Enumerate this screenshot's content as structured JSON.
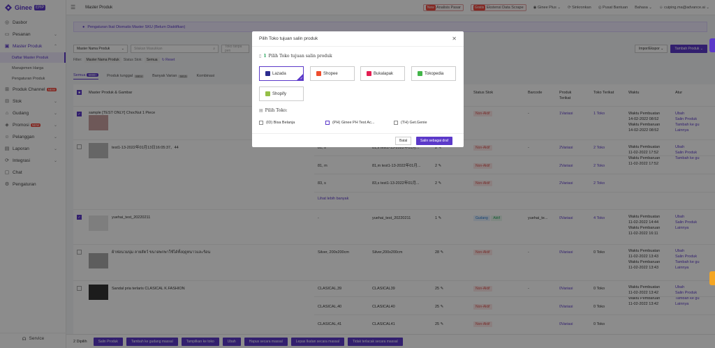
{
  "app": {
    "name": "Ginee",
    "badge": "ERP"
  },
  "sidebar": {
    "items": [
      {
        "label": "Dasbor",
        "icon": "dashboard-icon"
      },
      {
        "label": "Pesanan",
        "icon": "cart-icon"
      },
      {
        "label": "Master Produk",
        "icon": "box-icon"
      },
      {
        "label": "Produk Channel",
        "icon": "channel-icon",
        "tag": "NEW"
      },
      {
        "label": "Stok",
        "icon": "stock-icon"
      },
      {
        "label": "Gudang",
        "icon": "warehouse-icon"
      },
      {
        "label": "Promosi",
        "icon": "promo-icon",
        "tag": "NEW"
      },
      {
        "label": "Pelanggan",
        "icon": "users-icon"
      },
      {
        "label": "Laporan",
        "icon": "report-icon"
      },
      {
        "label": "Integrasi",
        "icon": "integration-icon"
      },
      {
        "label": "Chat",
        "icon": "chat-icon"
      },
      {
        "label": "Pengaturan",
        "icon": "settings-icon"
      }
    ],
    "subitems": [
      "Daftar Master Produk",
      "Manajemen Harga",
      "Pengaturan Produk"
    ],
    "service": "Service"
  },
  "topbar": {
    "title": "Master Produk",
    "new_badge": "New",
    "analisis": "Analisis Pasar",
    "gratis_badge": "Gratis",
    "scrape": "Ekstensi Data Scrape",
    "ginee_plus": "Ginee Plus",
    "sinkronkan": "Sinkronkan",
    "pusat_bantuan": "Pusat Bantuan",
    "bahasa": "Bahasa",
    "user": "cuiping.ma@advance.ai"
  },
  "notice": "Pengaturan Ikat Otomatis Master SKU (Belum Diaktifkan)",
  "filter": {
    "field": "Master Nama Produk",
    "search_placeholder": "Silakan Masukkan",
    "store_placeholder": "Toko tanpa pen",
    "import_export": "Impor/Ekspor",
    "add_product": "Tambah Produk",
    "chips_label": "Filter:",
    "chip1": "Master Nama Produk",
    "status_label": "Status Stok:",
    "chip2": "Semua",
    "reset": "Reset"
  },
  "tabs": [
    {
      "label": "Semua",
      "count": "9999+"
    },
    {
      "label": "Produk tunggal",
      "count": "8804"
    },
    {
      "label": "Banyak Varian",
      "count": "5815"
    },
    {
      "label": "Kombinasi",
      "count": ""
    }
  ],
  "table": {
    "headers": [
      "Master Produk & Gambar",
      "Status Stok",
      "Barcode",
      "Produk Terikat",
      "Toko Terikat",
      "Waktu",
      "Atur"
    ],
    "rows": [
      {
        "name": "sample [TEST ONLY] ChocNut 1 Piece",
        "variant": "",
        "sku": "",
        "qty": "",
        "status": "Non-Aktif",
        "barcode": "-",
        "variasi": "1Variasi",
        "toko": "1 Toko",
        "w1": "Waktu Pembuatan",
        "d1": "14-02-2022 08:52",
        "w2": "Waktu Pembaruan",
        "d2": "14-02-2022 08:52",
        "actions": [
          "Ubah",
          "Salin Produk",
          "Tambah ke gu",
          "Lainnya"
        ]
      },
      {
        "name": "test1-13-2022年01月13日16:05:37、44",
        "variant": "81, s",
        "sku": "81,s test1-13-2022年01月...",
        "qty": "2",
        "status": "Non-Aktif",
        "barcode": "-",
        "variasi": "2Variasi",
        "toko": "2 Toko",
        "w1": "Waktu Pembuatan",
        "d1": "11-02-2022 17:52",
        "w2": "Waktu Pembaruan",
        "d2": "11-02-2022 17:52",
        "actions": [
          "Ubah",
          "Salin Produk",
          "Tambah ke gu"
        ]
      },
      {
        "name": "",
        "variant": "81, m",
        "sku": "81,m test1-13-2022年01月...",
        "qty": "2",
        "status": "Non-Aktif",
        "barcode": "",
        "variasi": "2Variasi",
        "toko": "2 Toko",
        "w1": "",
        "d1": "",
        "w2": "",
        "d2": "",
        "actions": []
      },
      {
        "name": "",
        "variant": "83, s",
        "sku": "83,s test1-13-2022年01月...",
        "qty": "2",
        "status": "Non-Aktif",
        "barcode": "",
        "variasi": "2Variasi",
        "toko": "2 Toko",
        "w1": "",
        "d1": "",
        "w2": "",
        "d2": "",
        "actions": []
      },
      {
        "name": "yuehai_test_20220211",
        "variant": "-",
        "sku": "yuehai_test_20220211",
        "qty": "1",
        "status": "Gudang",
        "status2": "Aktif",
        "barcode": "yuehai_te...",
        "variasi": "0Variasi",
        "toko": "4 Toko",
        "w1": "Waktu Pembuatan",
        "d1": "11-02-2022 14:44",
        "w2": "Waktu Pembaruan",
        "d2": "11-02-2022 16:11",
        "actions": [
          "Ubah",
          "Salin Produk",
          "Lainnya"
        ]
      },
      {
        "name": "ผ้าห่อนวมนุ่ม ลายสัตว์ ขนาดพกพาใช้ได้ทั้งฤดูหนาวและร้อน",
        "variant": "Silver, 200x200cm",
        "sku": "Silver,200x200cm",
        "qty": "28",
        "status": "Non-Aktif",
        "barcode": "-",
        "variasi": "0Variasi",
        "toko": "0 Toko",
        "w1": "Waktu Pembuatan",
        "d1": "11-02-2022 13:43",
        "w2": "Waktu Pembaruan",
        "d2": "11-02-2022 13:43",
        "actions": [
          "Ubah",
          "Salin Produk",
          "Tambah ke gu",
          "Lainnya"
        ]
      },
      {
        "name": "Sandal pria terlaris CLASICAL K.FASHION",
        "variant": "CLASICAL,39",
        "sku": "CLASICAL39",
        "qty": "25",
        "status": "Non-Aktif",
        "barcode": "-",
        "variasi": "0Variasi",
        "toko": "0 Toko",
        "w1": "Waktu Pembuatan",
        "d1": "11-02-2022 13:42",
        "w2": "Waktu Pembaruan",
        "d2": "11-02-2022 13:42",
        "actions": [
          "Ubah",
          "Salin Produk",
          "Tambah ke gu",
          "Lainnya"
        ]
      },
      {
        "name": "",
        "variant": "CLASICAL,40",
        "sku": "CLASICAL40",
        "qty": "25",
        "status": "Non-Aktif",
        "barcode": "",
        "variasi": "0Variasi",
        "toko": "0 Toko",
        "w1": "",
        "d1": "",
        "w2": "",
        "d2": "",
        "actions": []
      },
      {
        "name": "",
        "variant": "CLASICAL,41",
        "sku": "CLASICAL41",
        "qty": "25",
        "status": "Non-Aktif",
        "barcode": "",
        "variasi": "0Variasi",
        "toko": "0 Toko",
        "w1": "",
        "d1": "",
        "w2": "",
        "d2": "",
        "actions": []
      }
    ],
    "see_more": "Lihat lebih banyak"
  },
  "modal": {
    "title": "Pilih Toko tujuan salin produk",
    "step1_num": "1",
    "step1": "Pilih Toko tujuan salin produk",
    "channels": [
      {
        "label": "Lazada",
        "color": "#2b2c8f"
      },
      {
        "label": "Shopee",
        "color": "#ee4d2d"
      },
      {
        "label": "Bukalapak",
        "color": "#e31e52"
      },
      {
        "label": "Tokopedia",
        "color": "#42b549"
      },
      {
        "label": "Shopify",
        "color": "#95bf47"
      }
    ],
    "step2": "Pilih Toko:",
    "stores": [
      "(ID) Bisa Belanja",
      "(PH) Ginee PH Test Ac...",
      "(TH) Get.Genie"
    ],
    "cancel": "Batal",
    "confirm": "Salin sebagai draf"
  },
  "bottombar": {
    "selected": "2 Dipilih",
    "buttons": [
      "Salin Produk",
      "Tambah ke gudang massal",
      "Tampilkan ke toko",
      "Ubah",
      "Hapus secara massal",
      "Lepas Ikatan secara massal",
      "Tidak terlacak secara massal"
    ]
  }
}
